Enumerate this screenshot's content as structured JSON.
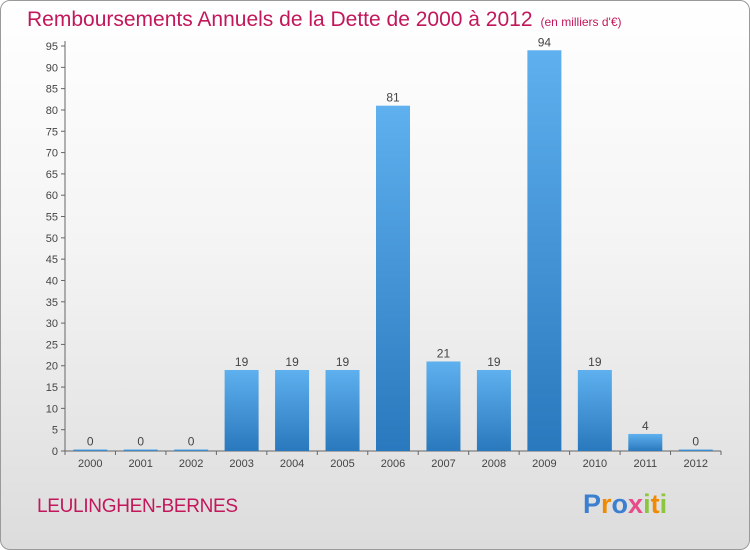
{
  "chart_data": {
    "type": "bar",
    "title": "Remboursements Annuels de la Dette de 2000 à 2012",
    "subtitle": "(en milliers d'€)",
    "categories": [
      "2000",
      "2001",
      "2002",
      "2003",
      "2004",
      "2005",
      "2006",
      "2007",
      "2008",
      "2009",
      "2010",
      "2011",
      "2012"
    ],
    "values": [
      0,
      0,
      0,
      19,
      19,
      19,
      81,
      21,
      19,
      94,
      19,
      4,
      0
    ],
    "ylim": [
      0,
      95
    ],
    "yticks": [
      0,
      5,
      10,
      15,
      20,
      25,
      30,
      35,
      40,
      45,
      50,
      55,
      60,
      65,
      70,
      75,
      80,
      85,
      90,
      95
    ],
    "grid": false,
    "bar_color": "#3a8fd6",
    "title_color": "#c2185b"
  },
  "commune": "LEULINGHEN-BERNES",
  "logo": {
    "letters": [
      "P",
      "r",
      "o",
      "x",
      "i",
      "t",
      "i"
    ],
    "colors": [
      "#3a7fd0",
      "#f08a00",
      "#3a7fd0",
      "#e84a8a",
      "#8cc63f",
      "#f08a00",
      "#8cc63f"
    ]
  }
}
